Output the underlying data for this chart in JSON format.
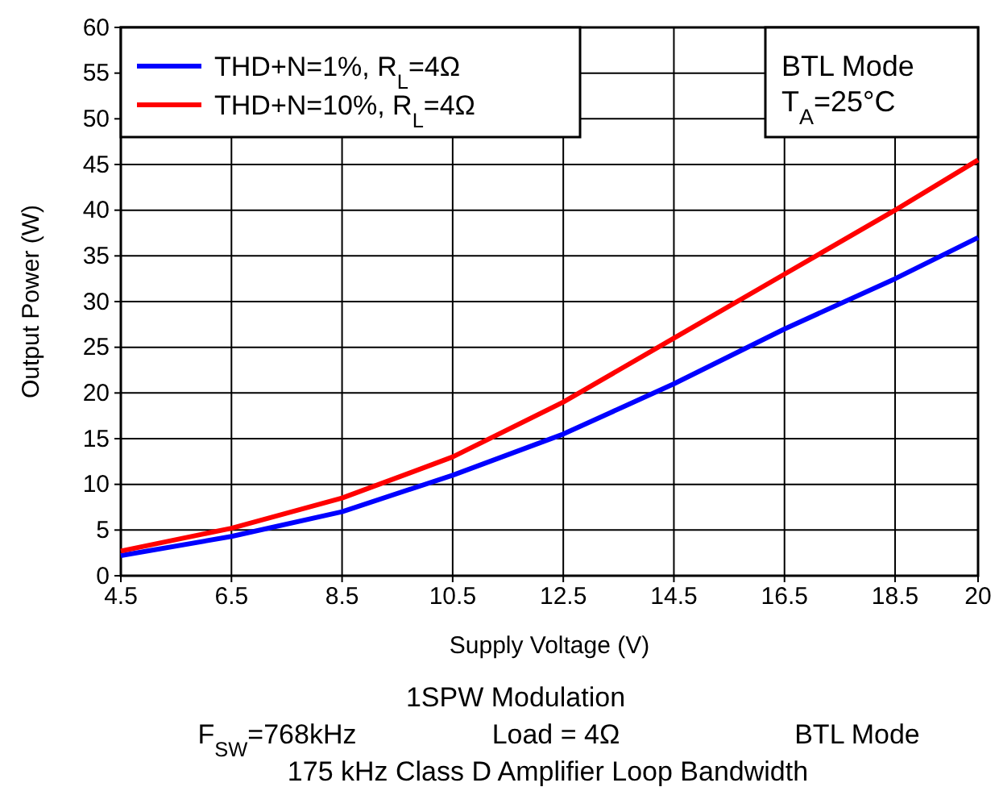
{
  "chart_data": {
    "type": "line",
    "xlabel": "Supply Voltage (V)",
    "ylabel": "Output Power (W)",
    "xlim": [
      4.5,
      20
    ],
    "xticks": [
      4.5,
      6.5,
      8.5,
      10.5,
      12.5,
      14.5,
      16.5,
      18.5,
      20
    ],
    "ylim": [
      0,
      60
    ],
    "yticks": [
      0,
      5,
      10,
      15,
      20,
      25,
      30,
      35,
      40,
      45,
      50,
      55,
      60
    ],
    "grid": true,
    "legend": "top left",
    "marker": "none",
    "line_style": "solid",
    "series": [
      {
        "name": "THD+N=1%, R$_{L}$=4Ω",
        "color": "#0000ff",
        "x": [
          4.5,
          6.5,
          8.5,
          10.5,
          12.5,
          14.5,
          16.5,
          18.5,
          19.5,
          20
        ],
        "values": [
          2.2,
          4.3,
          7,
          11,
          15.5,
          21,
          27,
          32.5,
          35.5,
          37
        ]
      },
      {
        "name": "THD+N=10%, R$_{L}$=4Ω",
        "color": "#ff0000",
        "x": [
          4.5,
          6.5,
          8.5,
          10.5,
          12.5,
          14.5,
          16.5,
          18.5,
          20
        ],
        "values": [
          2.7,
          5.2,
          8.5,
          13,
          19,
          26,
          33,
          40,
          45.5
        ]
      }
    ],
    "annotations": [
      "BTL Mode",
      "T$_{A}$=25°C",
      "1SPW Modulation",
      "F$_{SW}$=768kHz",
      "Load = 4Ω",
      "BTL Mode",
      "175 kHz Class D Amplifier Loop Bandwidth"
    ]
  }
}
